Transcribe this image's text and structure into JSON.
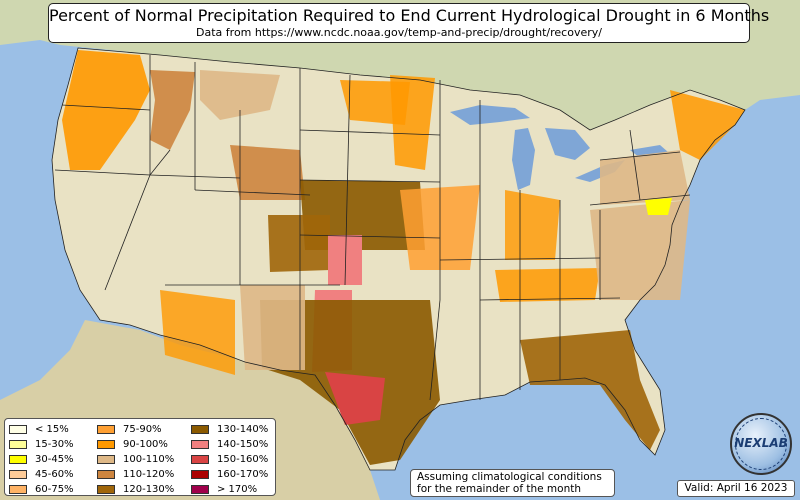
{
  "header": {
    "title": "Percent of Normal Precipitation Required to End Current Hydrological Drought in 6 Months",
    "subtitle": "Data from https://www.ncdc.noaa.gov/temp-and-precip/drought/recovery/"
  },
  "legend": {
    "items": [
      {
        "label": "< 15%",
        "color": "#ffffe6"
      },
      {
        "label": "15-30%",
        "color": "#ffff99"
      },
      {
        "label": "30-45%",
        "color": "#ffff00"
      },
      {
        "label": "45-60%",
        "color": "#ffcc99"
      },
      {
        "label": "60-75%",
        "color": "#ffb366"
      },
      {
        "label": "75-90%",
        "color": "#ffa033"
      },
      {
        "label": "90-100%",
        "color": "#ff9900"
      },
      {
        "label": "100-110%",
        "color": "#deb887"
      },
      {
        "label": "110-120%",
        "color": "#cd853f"
      },
      {
        "label": "120-130%",
        "color": "#a0660a"
      },
      {
        "label": "130-140%",
        "color": "#8b5a00"
      },
      {
        "label": "140-150%",
        "color": "#f08080"
      },
      {
        "label": "150-160%",
        "color": "#d94444"
      },
      {
        "label": "160-170%",
        "color": "#aa0000"
      },
      {
        "label": "> 170%",
        "color": "#a0004b"
      }
    ]
  },
  "note": {
    "line1": "Assuming climatological conditions",
    "line2": "for the remainder of the month"
  },
  "valid": {
    "text": "Valid: April 16 2023"
  },
  "logo": {
    "text": "NEXLAB"
  },
  "colors": {
    "ocean": "#9bbfe6",
    "land": "#e9e2c4",
    "lakes": "#7fa6d6",
    "borders": "#222222"
  }
}
